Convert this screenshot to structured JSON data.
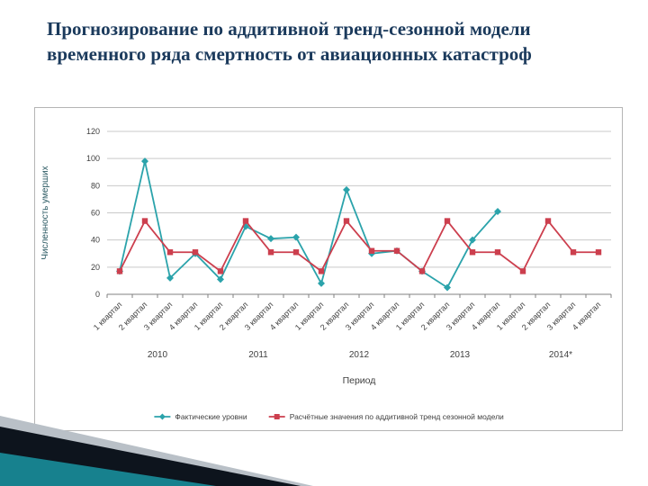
{
  "slide": {
    "title_line1": "Прогнозирование по аддитивной тренд-сезонной модели",
    "title_line2": "временного ряда смертность от авиационных катастроф"
  },
  "chart_data": {
    "type": "line",
    "title": "",
    "xlabel": "Период",
    "ylabel": "Численность умерших",
    "ylim": [
      0,
      120
    ],
    "yticks": [
      0,
      20,
      40,
      60,
      80,
      100,
      120
    ],
    "grid": "horizontal",
    "legend_position": "bottom",
    "quarters": [
      "1 квартал",
      "2 квартал",
      "3 квартал",
      "4 квартал"
    ],
    "years": [
      "2010",
      "2011",
      "2012",
      "2013",
      "2014*"
    ],
    "series": [
      {
        "name": "Фактические уровни",
        "color": "#2ba3ab",
        "marker": "diamond",
        "values": [
          17,
          98,
          12,
          30,
          11,
          50,
          41,
          42,
          8,
          77,
          30,
          32,
          17,
          5,
          40,
          61,
          null,
          null,
          null,
          null
        ]
      },
      {
        "name": "Расчётные значения по аддитивной тренд сезонной модели",
        "color": "#cc3f4e",
        "marker": "square",
        "values": [
          17,
          54,
          31,
          31,
          17,
          54,
          31,
          31,
          17,
          54,
          32,
          32,
          17,
          54,
          31,
          31,
          17,
          54,
          31,
          31
        ]
      }
    ]
  },
  "decoration": {
    "corner_gray": "#b9c0c7",
    "corner_dark": "#0d141d",
    "corner_teal": "#17818e"
  }
}
